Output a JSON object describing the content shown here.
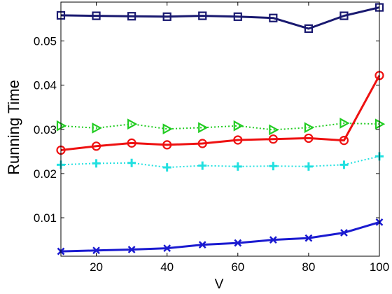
{
  "chart_data": {
    "type": "line",
    "title": "",
    "xlabel": "V",
    "ylabel": "Running Time",
    "xlim": [
      10,
      100
    ],
    "ylim": [
      0.0013,
      0.0588
    ],
    "grid": false,
    "legend": "none",
    "x": [
      10,
      20,
      30,
      40,
      50,
      60,
      70,
      80,
      90,
      100
    ],
    "xticks": [
      20,
      40,
      60,
      80,
      100
    ],
    "yticks": [
      0.01,
      0.02,
      0.03,
      0.04,
      0.05
    ],
    "xtick_labels": [
      "20",
      "40",
      "60",
      "80",
      "100"
    ],
    "ytick_labels": [
      "0.01",
      "0.02",
      "0.03",
      "0.04",
      "0.05"
    ],
    "series": [
      {
        "values": [
          0.0558,
          0.0557,
          0.0556,
          0.0555,
          0.0557,
          0.0555,
          0.0552,
          0.0528,
          0.0557,
          0.0576
        ],
        "color": "#191970",
        "marker": "square",
        "line": "solid",
        "width": 3
      },
      {
        "values": [
          0.0308,
          0.0303,
          0.0312,
          0.0301,
          0.0304,
          0.0308,
          0.0299,
          0.0304,
          0.0314,
          0.0312
        ],
        "color": "#22cc22",
        "marker": "triangle-right",
        "line": "dotted",
        "width": 2
      },
      {
        "values": [
          0.0253,
          0.0262,
          0.0269,
          0.0265,
          0.0268,
          0.0276,
          0.0278,
          0.028,
          0.0275,
          0.0422
        ],
        "color": "#ee1111",
        "marker": "circle",
        "line": "solid",
        "width": 3
      },
      {
        "values": [
          0.022,
          0.0223,
          0.0224,
          0.0214,
          0.0218,
          0.0216,
          0.0217,
          0.0216,
          0.022,
          0.0239
        ],
        "color": "#22e0e0",
        "marker": "plus",
        "line": "dotted",
        "width": 2
      },
      {
        "values": [
          0.0024,
          0.0026,
          0.0028,
          0.0031,
          0.0039,
          0.0043,
          0.005,
          0.0054,
          0.0066,
          0.009
        ],
        "color": "#1a1ad0",
        "marker": "x",
        "line": "solid",
        "width": 3
      }
    ]
  }
}
